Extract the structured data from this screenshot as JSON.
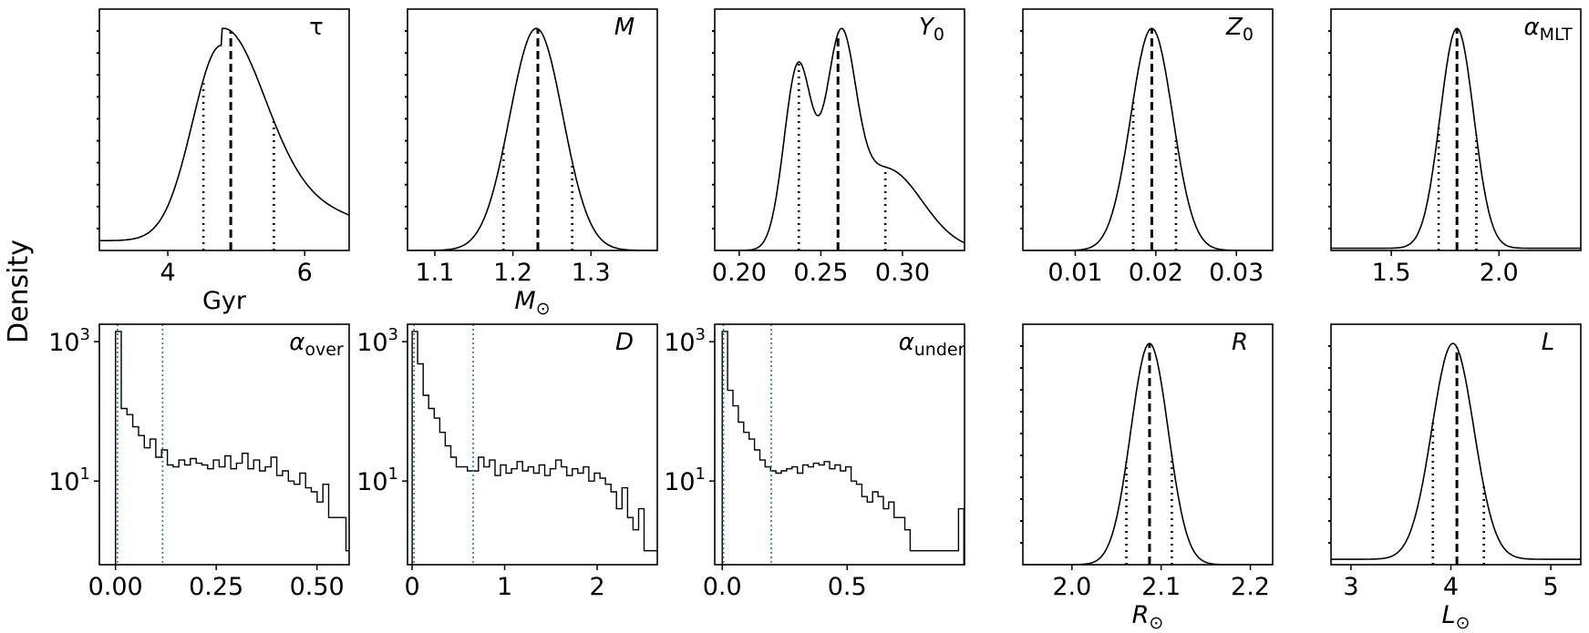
{
  "figure": {
    "ylabel": "Density"
  },
  "colors": {
    "line": "#000000",
    "marker_line": "#1f77b4"
  },
  "chart_data": [
    {
      "id": "tau",
      "type": "line",
      "title": {
        "base": "τ",
        "sub": "",
        "italic": false
      },
      "xlabel": {
        "base": "Gyr",
        "sub": ""
      },
      "xlim": [
        3.0,
        6.65
      ],
      "xticks": [
        4,
        6
      ],
      "xticklabels": [
        "4",
        "6"
      ],
      "yscale": "linear",
      "ylim": [
        0,
        1.0
      ],
      "curve": {
        "peak": 4.78,
        "sigma_left": 0.42,
        "sigma_right": 0.62,
        "tail_amp": 0.16,
        "tail_center": 5.9,
        "tail_sigma": 1.0,
        "baseline": 0.05
      },
      "median": 4.92,
      "lower": 4.52,
      "upper": 5.55
    },
    {
      "id": "M",
      "type": "line",
      "title": {
        "base": "M",
        "sub": "",
        "italic": true
      },
      "xlabel": {
        "base": "M",
        "sub": "⊙"
      },
      "xlim": [
        1.065,
        1.385
      ],
      "xticks": [
        1.1,
        1.2,
        1.3
      ],
      "xticklabels": [
        "1.1",
        "1.2",
        "1.3"
      ],
      "yscale": "linear",
      "ylim": [
        0,
        1.0
      ],
      "curve": {
        "peak": 1.23,
        "sigma_left": 0.034,
        "sigma_right": 0.034,
        "tail_amp": 0,
        "tail_center": 0,
        "tail_sigma": 1,
        "baseline": 0
      },
      "median": 1.232,
      "lower": 1.188,
      "upper": 1.276
    },
    {
      "id": "Y0",
      "type": "line",
      "title": {
        "base": "Y",
        "sub": "0",
        "italic": true
      },
      "xlabel": {
        "base": "",
        "sub": ""
      },
      "xlim": [
        0.185,
        0.338
      ],
      "xticks": [
        0.2,
        0.25,
        0.3
      ],
      "xticklabels": [
        "0.20",
        "0.25",
        "0.30"
      ],
      "yscale": "linear",
      "ylim": [
        0,
        1.0
      ],
      "bimodal": [
        {
          "mu": 0.236,
          "sigma": 0.0085,
          "amp": 0.82
        },
        {
          "mu": 0.262,
          "sigma": 0.009,
          "amp": 0.83
        },
        {
          "mu": 0.29,
          "sigma": 0.022,
          "amp": 0.37
        }
      ],
      "median": 0.2605,
      "lower": 0.2365,
      "upper": 0.2895
    },
    {
      "id": "Z0",
      "type": "line",
      "title": {
        "base": "Z",
        "sub": "0",
        "italic": true
      },
      "xlabel": {
        "base": "",
        "sub": ""
      },
      "xlim": [
        0.0035,
        0.0345
      ],
      "xticks": [
        0.01,
        0.02,
        0.03
      ],
      "xticklabels": [
        "0.01",
        "0.02",
        "0.03"
      ],
      "yscale": "linear",
      "ylim": [
        0,
        1.0
      ],
      "curve": {
        "peak": 0.0195,
        "sigma_left": 0.0026,
        "sigma_right": 0.0026,
        "tail_amp": 0,
        "tail_center": 0,
        "tail_sigma": 1,
        "baseline": 0
      },
      "median": 0.0195,
      "lower": 0.0172,
      "upper": 0.0225
    },
    {
      "id": "aMLT",
      "type": "line",
      "title": {
        "base": "α",
        "sub": "MLT",
        "italic": true
      },
      "xlabel": {
        "base": "",
        "sub": ""
      },
      "xlim": [
        1.22,
        2.38
      ],
      "xticks": [
        1.5,
        2.0
      ],
      "xticklabels": [
        "1.5",
        "2.0"
      ],
      "yscale": "linear",
      "ylim": [
        0,
        1.0
      ],
      "curve": {
        "peak": 1.805,
        "sigma_left": 0.078,
        "sigma_right": 0.078,
        "tail_amp": 0,
        "tail_center": 0,
        "tail_sigma": 1,
        "baseline": 0.01
      },
      "median": 1.805,
      "lower": 1.72,
      "upper": 1.895
    },
    {
      "id": "aover",
      "type": "histogram",
      "title": {
        "base": "α",
        "sub": "over",
        "italic": true
      },
      "xlabel": {
        "base": "",
        "sub": ""
      },
      "xlim": [
        -0.04,
        0.58
      ],
      "xticks": [
        0.0,
        0.25,
        0.5
      ],
      "xticklabels": [
        "0.00",
        "0.25",
        "0.50"
      ],
      "yscale": "log",
      "ylim_log10": [
        -0.2,
        3.25
      ],
      "yticks_log10": [
        1,
        3
      ],
      "yticklabels": [
        {
          "base": "10",
          "exp": "1"
        },
        {
          "base": "10",
          "exp": "3"
        }
      ],
      "bin_start": 0.0,
      "bin_width": 0.0143,
      "counts": [
        1400,
        110,
        90,
        60,
        45,
        30,
        40,
        22,
        28,
        17,
        16,
        20,
        17,
        21,
        18,
        17,
        15,
        20,
        16,
        23,
        15,
        18,
        25,
        15,
        20,
        14,
        16,
        22,
        12,
        14,
        10,
        9,
        13,
        8,
        7,
        5,
        9,
        3,
        3,
        3,
        1,
        1,
        2,
        1,
        2
      ],
      "markers": [
        0.005,
        0.117
      ]
    },
    {
      "id": "D",
      "type": "histogram",
      "title": {
        "base": "D",
        "sub": "",
        "italic": true
      },
      "xlabel": {
        "base": "",
        "sub": ""
      },
      "xlim": [
        -0.05,
        2.65
      ],
      "xticks": [
        0,
        1,
        2
      ],
      "xticklabels": [
        "0",
        "1",
        "2"
      ],
      "yscale": "log",
      "ylim_log10": [
        -0.2,
        3.25
      ],
      "yticks_log10": [
        1,
        3
      ],
      "yticklabels": [
        {
          "base": "10",
          "exp": "1"
        },
        {
          "base": "10",
          "exp": "3"
        }
      ],
      "bin_start": 0.0,
      "bin_width": 0.0597,
      "counts": [
        1400,
        480,
        170,
        110,
        80,
        50,
        32,
        22,
        16,
        16,
        14,
        14,
        22,
        16,
        20,
        12,
        17,
        13,
        15,
        19,
        14,
        16,
        13,
        17,
        12,
        15,
        20,
        16,
        12,
        15,
        13,
        16,
        10,
        13,
        11,
        9,
        7,
        4,
        8,
        3,
        2,
        4,
        1,
        1,
        1
      ],
      "markers": [
        0.02,
        0.66
      ]
    },
    {
      "id": "aunder",
      "type": "histogram",
      "title": {
        "base": "α",
        "sub": "under",
        "italic": true
      },
      "xlabel": {
        "base": "",
        "sub": ""
      },
      "xlim": [
        -0.03,
        0.97
      ],
      "xticks": [
        0.0,
        0.5
      ],
      "xticklabels": [
        "0.0",
        "0.5"
      ],
      "yscale": "log",
      "ylim_log10": [
        -0.2,
        3.25
      ],
      "yticks_log10": [
        1,
        3
      ],
      "yticklabels": [
        {
          "base": "10",
          "exp": "1"
        },
        {
          "base": "10",
          "exp": "3"
        }
      ],
      "bin_start": 0.0,
      "bin_width": 0.0215,
      "counts": [
        1400,
        200,
        120,
        70,
        50,
        40,
        28,
        20,
        16,
        14,
        13,
        14,
        15,
        16,
        13,
        17,
        16,
        18,
        17,
        19,
        15,
        17,
        14,
        16,
        10,
        9,
        6,
        5,
        7,
        6,
        4,
        5,
        3,
        3,
        2,
        1,
        1,
        1,
        1,
        1,
        1,
        1,
        1,
        1,
        4
      ],
      "markers": [
        0.005,
        0.196
      ]
    },
    {
      "id": "R",
      "type": "line",
      "title": {
        "base": "R",
        "sub": "",
        "italic": true
      },
      "xlabel": {
        "base": "R",
        "sub": "⊙"
      },
      "xlim": [
        1.945,
        2.225
      ],
      "xticks": [
        2.0,
        2.1,
        2.2
      ],
      "xticklabels": [
        "2.0",
        "2.1",
        "2.2"
      ],
      "yscale": "linear",
      "ylim": [
        0,
        1.0
      ],
      "curve": {
        "peak": 2.087,
        "sigma_left": 0.021,
        "sigma_right": 0.021,
        "tail_amp": 0,
        "tail_center": 0,
        "tail_sigma": 1,
        "baseline": 0
      },
      "median": 2.087,
      "lower": 2.061,
      "upper": 2.112
    },
    {
      "id": "L",
      "type": "line",
      "title": {
        "base": "L",
        "sub": "",
        "italic": true
      },
      "xlabel": {
        "base": "L",
        "sub": "⊙"
      },
      "xlim": [
        2.8,
        5.3
      ],
      "xticks": [
        3,
        4,
        5
      ],
      "xticklabels": [
        "3",
        "4",
        "5"
      ],
      "yscale": "linear",
      "ylim": [
        0,
        1.0
      ],
      "curve": {
        "peak": 4.02,
        "sigma_left": 0.21,
        "sigma_right": 0.21,
        "tail_amp": 0,
        "tail_center": 0,
        "tail_sigma": 1,
        "baseline": 0.025
      },
      "median": 4.06,
      "lower": 3.82,
      "upper": 4.33
    }
  ]
}
